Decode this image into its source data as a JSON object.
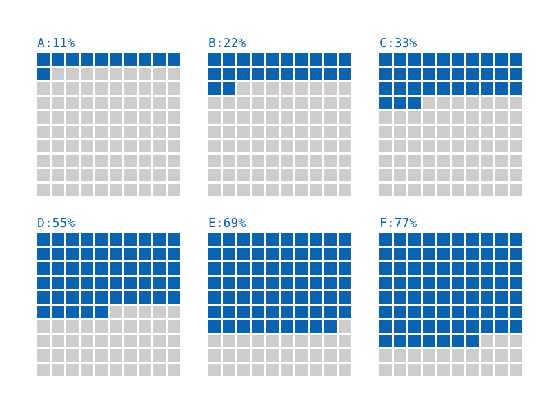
{
  "chart_data": {
    "type": "waffle",
    "grid": {
      "rows": 10,
      "cols": 10,
      "total": 100
    },
    "colors": {
      "filled": "#0b63b0",
      "empty": "#cccccc",
      "text": "#0b63b0"
    },
    "panels": [
      {
        "label": "A:11%",
        "value": 11
      },
      {
        "label": "B:22%",
        "value": 22
      },
      {
        "label": "C:33%",
        "value": 33
      },
      {
        "label": "D:55%",
        "value": 55
      },
      {
        "label": "E:69%",
        "value": 69
      },
      {
        "label": "F:77%",
        "value": 77
      }
    ]
  }
}
